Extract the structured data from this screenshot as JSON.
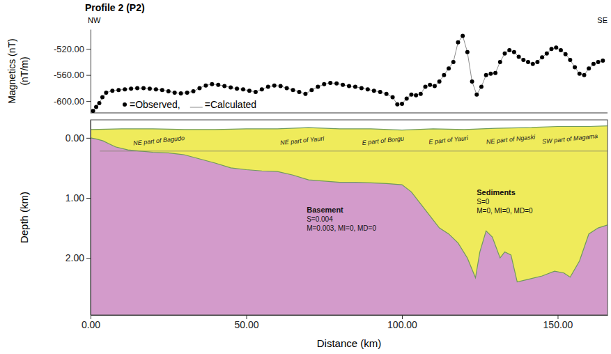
{
  "chart_data": [
    {
      "type": "scatter",
      "title": "Profile 2 (P2)",
      "annotations": [
        "NW",
        "SE"
      ],
      "y_label": [
        "Magnetics (nT)",
        "(nT/m)"
      ],
      "xlim": [
        0,
        166
      ],
      "ylim": [
        -618,
        -490
      ],
      "yticks": [
        {
          "value": -520,
          "label": "-520.00"
        },
        {
          "value": -560,
          "label": "-560.00"
        },
        {
          "value": -600,
          "label": "-600.00"
        }
      ],
      "tick_labels": "y",
      "legend": "lower left",
      "x": [
        0.8,
        1.8,
        2.8,
        3.8,
        5,
        7,
        9,
        11,
        13,
        15,
        17,
        19,
        21,
        23,
        25,
        27,
        29,
        31,
        33,
        35,
        37,
        39,
        41,
        43,
        45,
        47,
        49,
        51,
        53,
        55,
        57,
        59,
        61,
        63,
        65,
        67,
        69,
        71,
        73,
        75,
        77,
        79,
        81,
        83,
        85,
        87,
        89,
        91,
        93,
        95,
        97,
        98.5,
        100,
        101.5,
        103,
        104.5,
        106,
        107.5,
        109,
        110.5,
        112,
        113.5,
        115,
        116.5,
        118,
        119.5,
        121,
        122.5,
        124,
        125.5,
        127,
        128.5,
        130,
        131.5,
        133,
        134.5,
        136,
        137.5,
        139,
        140.5,
        142,
        143.5,
        145,
        146.5,
        148,
        149.5,
        151,
        152.5,
        154,
        155.5,
        157,
        158.5,
        160,
        161.5,
        163,
        164.5
      ],
      "series": [
        {
          "name": "=Calculated",
          "type": "line",
          "color": "#8c8c8c",
          "line_style": "solid",
          "values": [
            -615,
            -609,
            -603,
            -594,
            -587,
            -584,
            -583,
            -582,
            -581,
            -580,
            -580,
            -581,
            -582,
            -583,
            -585,
            -587,
            -588,
            -587,
            -585,
            -580,
            -576,
            -574,
            -575,
            -577,
            -579,
            -581,
            -582,
            -584,
            -586,
            -582,
            -578,
            -576,
            -577,
            -580,
            -583,
            -586,
            -589,
            -583,
            -578,
            -574,
            -572,
            -573,
            -575,
            -577,
            -578,
            -580,
            -582,
            -584,
            -586,
            -589,
            -594,
            -605,
            -604,
            -596,
            -590,
            -591,
            -589,
            -578,
            -575,
            -577,
            -570,
            -560,
            -550,
            -540,
            -510,
            -500,
            -525,
            -570,
            -590,
            -578,
            -560,
            -558,
            -557,
            -540,
            -527,
            -522,
            -525,
            -532,
            -537,
            -540,
            -543,
            -540,
            -533,
            -527,
            -520,
            -518,
            -522,
            -528,
            -537,
            -548,
            -558,
            -560,
            -550,
            -543,
            -540,
            -538
          ]
        },
        {
          "name": "=Observed,",
          "type": "scatter",
          "color": "#000000",
          "marker": "circle",
          "values": [
            -615,
            -609,
            -603,
            -594,
            -587,
            -584,
            -583,
            -582,
            -581,
            -580,
            -580,
            -581,
            -582,
            -583,
            -585,
            -587,
            -588,
            -587,
            -585,
            -580,
            -576,
            -574,
            -575,
            -577,
            -579,
            -581,
            -582,
            -584,
            -586,
            -582,
            -578,
            -576,
            -577,
            -580,
            -583,
            -586,
            -589,
            -583,
            -578,
            -574,
            -572,
            -573,
            -575,
            -577,
            -578,
            -580,
            -582,
            -584,
            -586,
            -589,
            -594,
            -605,
            -604,
            -596,
            -590,
            -591,
            -589,
            -578,
            -575,
            -577,
            -570,
            -560,
            -550,
            -540,
            -510,
            -500,
            -525,
            -570,
            -590,
            -578,
            -560,
            -558,
            -557,
            -540,
            -527,
            -522,
            -525,
            -532,
            -537,
            -540,
            -543,
            -540,
            -533,
            -527,
            -520,
            -518,
            -522,
            -528,
            -537,
            -548,
            -558,
            -560,
            -550,
            -543,
            -540,
            -538
          ]
        }
      ]
    },
    {
      "type": "area",
      "x_label": "Distance (km)",
      "y_label": "Depth (km)",
      "xlim": [
        0,
        166
      ],
      "ylim": [
        -0.3,
        2.95
      ],
      "xticks": [
        {
          "value": 0,
          "label": "0.00"
        },
        {
          "value": 50,
          "label": "50.00"
        },
        {
          "value": 100,
          "label": "100.00"
        },
        {
          "value": 150,
          "label": "150.00"
        }
      ],
      "yticks": [
        {
          "value": 0,
          "label": "0.00"
        },
        {
          "value": 1,
          "label": "1.00"
        },
        {
          "value": 2,
          "label": "2.00"
        }
      ],
      "layers": [
        {
          "name": "Sediments",
          "color": "#efeb5b",
          "params": [
            "S=0",
            "M=0, MI=0, MD=0"
          ],
          "label_at": {
            "x": 124,
            "y": 0.95
          },
          "top": {
            "x": [
              0,
              10,
              20,
              30,
              40,
              50,
              60,
              70,
              80,
              90,
              100,
              110,
              120,
              130,
              140,
              150,
              160,
              166
            ],
            "values": [
              -0.14,
              -0.15,
              -0.15,
              -0.14,
              -0.14,
              -0.15,
              -0.15,
              -0.17,
              -0.15,
              -0.15,
              -0.13,
              -0.15,
              -0.14,
              -0.16,
              -0.17,
              -0.19,
              -0.19,
              -0.2
            ]
          }
        },
        {
          "name": "Basement",
          "color": "#d39bcb",
          "params": [
            "S=0.004",
            "M=0.003, MI=0, MD=0"
          ],
          "label_at": {
            "x": 69.4,
            "y": 1.24
          },
          "top": {
            "x": [
              0,
              2,
              4,
              6,
              8,
              12,
              16,
              20,
              25,
              30,
              35,
              40,
              45,
              50,
              55,
              60,
              65,
              70,
              75,
              80,
              85,
              90,
              95,
              100,
              103,
              106,
              109,
              112,
              115,
              118,
              121,
              123.6,
              125,
              127,
              129,
              131.5,
              133,
              135,
              137,
              141,
              145,
              149,
              152,
              154,
              157,
              160,
              163,
              166
            ],
            "values": [
              0.0,
              0.02,
              0.05,
              0.1,
              0.15,
              0.2,
              0.22,
              0.24,
              0.25,
              0.28,
              0.35,
              0.42,
              0.5,
              0.53,
              0.55,
              0.56,
              0.62,
              0.7,
              0.72,
              0.74,
              0.74,
              0.75,
              0.76,
              0.78,
              0.9,
              1.1,
              1.3,
              1.5,
              1.6,
              1.75,
              2.0,
              2.33,
              1.9,
              1.55,
              1.65,
              2.0,
              1.9,
              1.95,
              2.4,
              2.35,
              2.3,
              2.22,
              2.25,
              2.32,
              2.05,
              1.6,
              1.5,
              1.45
            ]
          }
        }
      ],
      "block_base": {
        "x": [
          3,
          166
        ],
        "values": [
          0.22,
          0.22
        ]
      },
      "block_labels": [
        {
          "text": "NE part of Bagudo",
          "x": 22,
          "y": 0.08
        },
        {
          "text": "NE part of Yauri",
          "x": 68,
          "y": 0.08
        },
        {
          "text": "E part of Borgu",
          "x": 94,
          "y": 0.08
        },
        {
          "text": "E part of Yauri",
          "x": 115,
          "y": 0.07
        },
        {
          "text": "NE part of Ngaski",
          "x": 135,
          "y": 0.06
        },
        {
          "text": "SW part of Magama",
          "x": 154,
          "y": 0.05
        }
      ]
    }
  ]
}
